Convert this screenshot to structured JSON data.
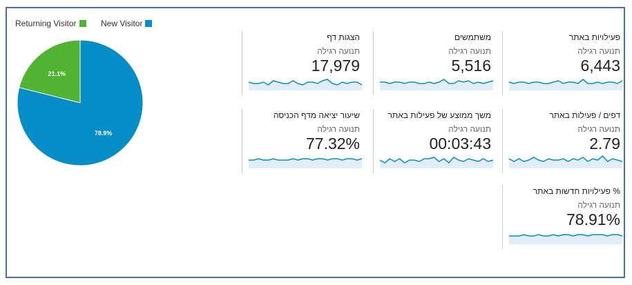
{
  "chart_data": {
    "type": "pie",
    "categories": [
      "Returning Visitor",
      "New Visitor"
    ],
    "values": [
      21.1,
      78.9
    ],
    "value_labels": [
      "21.1%",
      "78.9%"
    ],
    "colors": [
      "#50b432",
      "#058dc7"
    ]
  },
  "tiles": [
    {
      "title": "פעילויות באתר",
      "subtitle": "תנועה רגילה",
      "value": "6,443",
      "sparkline": [
        5,
        4,
        5,
        5,
        4,
        5,
        5,
        4,
        4,
        5,
        6,
        4,
        5,
        5,
        4,
        7,
        4,
        4,
        5,
        4,
        5,
        5,
        4,
        6
      ]
    },
    {
      "title": "משתמשים",
      "subtitle": "תנועה רגילה",
      "value": "5,516",
      "sparkline": [
        5,
        5,
        4,
        5,
        5,
        4,
        5,
        5,
        4,
        4,
        5,
        4,
        5,
        7,
        4,
        4,
        6,
        5,
        6,
        4,
        5,
        4,
        5,
        6
      ]
    },
    {
      "title": "הצגות דף",
      "subtitle": "תנועה רגילה",
      "value": "17,979",
      "sparkline": [
        5,
        4,
        4,
        5,
        3,
        6,
        5,
        4,
        4,
        6,
        4,
        3,
        5,
        5,
        4,
        6,
        7,
        4,
        3,
        5,
        4,
        5,
        5,
        3
      ]
    },
    {
      "title": "דפים / פעילות באתר",
      "subtitle": "תנועה רגילה",
      "value": "2.79",
      "sparkline": [
        6,
        4,
        6,
        4,
        5,
        7,
        5,
        4,
        6,
        5,
        5,
        6,
        4,
        6,
        5,
        7,
        4,
        6,
        5,
        8,
        4,
        6,
        5,
        4
      ]
    },
    {
      "title": "משך ממוצע של פעילות באתר",
      "subtitle": "תנועה רגילה",
      "value": "00:03:43",
      "sparkline": [
        5,
        3,
        6,
        4,
        6,
        3,
        5,
        5,
        4,
        6,
        6,
        7,
        4,
        6,
        3,
        7,
        5,
        4,
        6,
        5,
        4,
        6,
        4,
        5
      ]
    },
    {
      "title": "שיעור יציאה מדף הכניסה",
      "subtitle": "תנועה רגילה",
      "value": "77.32%",
      "sparkline": [
        5,
        5,
        6,
        5,
        5,
        6,
        5,
        5,
        5,
        6,
        5,
        6,
        6,
        5,
        6,
        6,
        5,
        6,
        6,
        5,
        6,
        6,
        5,
        6
      ]
    },
    {
      "title": "% פעילויות חדשות באתר",
      "subtitle": "תנועה רגילה",
      "value": "78.91%",
      "sparkline": [
        5,
        5,
        5,
        6,
        5,
        5,
        6,
        5,
        5,
        6,
        5,
        6,
        6,
        5,
        6,
        6,
        5,
        6,
        6,
        6,
        5,
        6,
        6,
        5
      ]
    }
  ]
}
